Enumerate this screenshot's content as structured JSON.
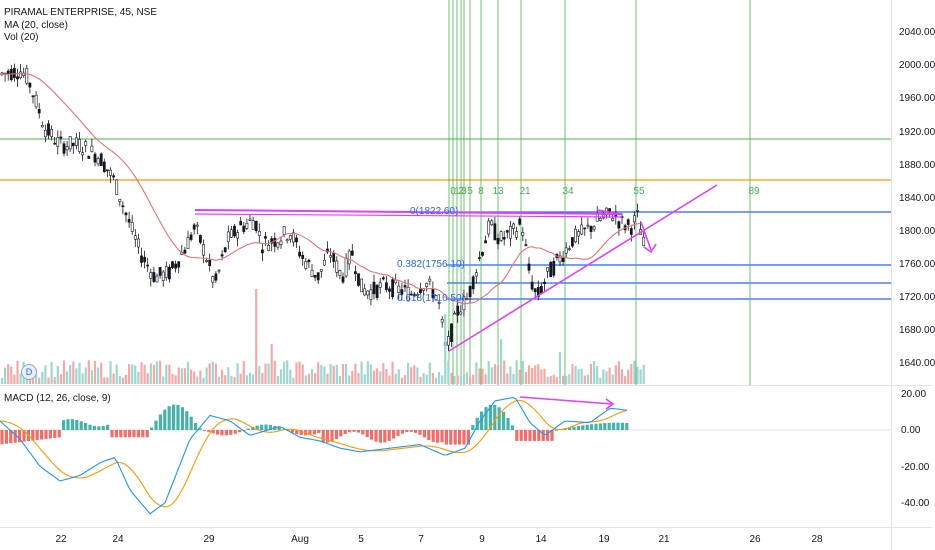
{
  "legend": {
    "symbol": "PIRAMAL ENTERPRISE, 45, NSE",
    "ma": "MA (20, close)",
    "vol": "Vol (20)",
    "macd": "MACD (12, 26, close, 9)"
  },
  "price_axis": [
    "2040.00",
    "2000.00",
    "1960.00",
    "1920.00",
    "1880.00",
    "1840.00",
    "1800.00",
    "1760.00",
    "1720.00",
    "1680.00",
    "1640.00"
  ],
  "macd_axis": [
    "20.00",
    "0.00",
    "-20.00",
    "-40.00"
  ],
  "date_axis": [
    "22",
    "24",
    "29",
    "Aug",
    "5",
    "7",
    "9",
    "14",
    "19",
    "21",
    "26",
    "28"
  ],
  "fib_retracement": [
    "0(1822.60)",
    "0.382(1756.10)",
    "0.618(1716.50)"
  ],
  "fib_time_zones": [
    "0",
    "1",
    "2",
    "3",
    "5",
    "8",
    "13",
    "21",
    "34",
    "55",
    "89"
  ],
  "event_badge": "D",
  "colors": {
    "up": "#26a69a",
    "down": "#ef5350",
    "ma": "#e57373",
    "macd": "#2196f3",
    "signal": "#ff9800",
    "annotation": "#e040fb",
    "fib_blue": "#2962ff",
    "fib_green": "#4caf50",
    "hline_orange": "#ff9800",
    "hline_green": "#4caf50"
  }
}
